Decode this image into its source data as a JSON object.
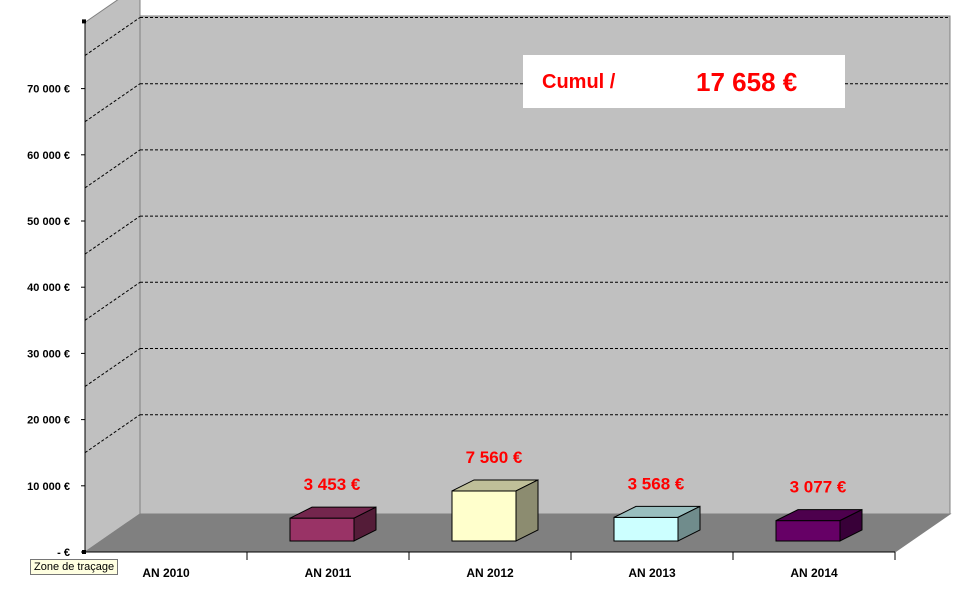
{
  "chart_data": {
    "type": "bar",
    "three_d": true,
    "categories": [
      "AN 2010",
      "AN 2011",
      "AN 2012",
      "AN 2013",
      "AN 2014"
    ],
    "values": [
      0,
      3453,
      7560,
      3568,
      3077
    ],
    "data_labels": [
      "",
      "3 453 €",
      "7 560 €",
      "3 568 €",
      "3 077 €"
    ],
    "bar_colors": [
      "",
      "#993366",
      "#ffffcc",
      "#ccffff",
      "#660066"
    ],
    "ylim": [
      0,
      80000
    ],
    "yticks": [
      0,
      10000,
      20000,
      30000,
      40000,
      50000,
      60000,
      70000
    ],
    "ytick_labels": [
      "-   €",
      "10 000 €",
      "20 000 €",
      "30 000 €",
      "40 000 €",
      "50 000 €",
      "60 000 €",
      "70 000 €"
    ],
    "grid": true,
    "colors": {
      "wall": "#c0c0c0",
      "floor": "#808080",
      "side_wall": "#c0c0c0",
      "label": "#ff0000"
    }
  },
  "summary_box": {
    "label": "Cumul /",
    "value": "17 658 €"
  },
  "tooltip": "Zone de traçage"
}
